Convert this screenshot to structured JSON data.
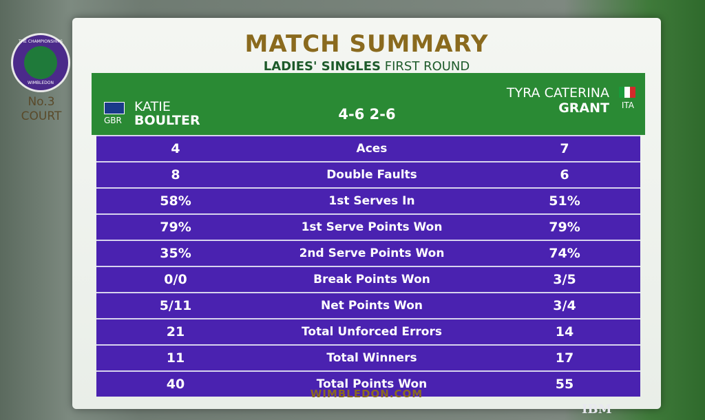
{
  "logo": {
    "top": "THE CHAMPIONSHIPS",
    "bottom": "WIMBLEDON"
  },
  "court": {
    "number": "No.3",
    "word": "COURT"
  },
  "header": {
    "title": "MATCH SUMMARY",
    "event": "LADIES' SINGLES",
    "round": "FIRST ROUND"
  },
  "players": {
    "left": {
      "country": "GBR",
      "first": "KATIE",
      "last": "BOULTER"
    },
    "right": {
      "country": "ITA",
      "first": "TYRA CATERINA",
      "last": "GRANT"
    }
  },
  "score": "4-6 2-6",
  "table": {
    "rows": [
      [
        "4",
        "Aces",
        "7"
      ],
      [
        "8",
        "Double Faults",
        "6"
      ],
      [
        "58%",
        "1st Serves In",
        "51%"
      ],
      [
        "79%",
        "1st Serve Points Won",
        "79%"
      ],
      [
        "35%",
        "2nd Serve Points Won",
        "74%"
      ],
      [
        "0/0",
        "Break Points Won",
        "3/5"
      ],
      [
        "5/11",
        "Net Points Won",
        "3/4"
      ],
      [
        "21",
        "Total Unforced Errors",
        "14"
      ],
      [
        "11",
        "Total Winners",
        "17"
      ],
      [
        "40",
        "Total Points Won",
        "55"
      ]
    ]
  },
  "footer": {
    "site": "WIMBLEDON.COM",
    "sponsor": "IBM"
  }
}
